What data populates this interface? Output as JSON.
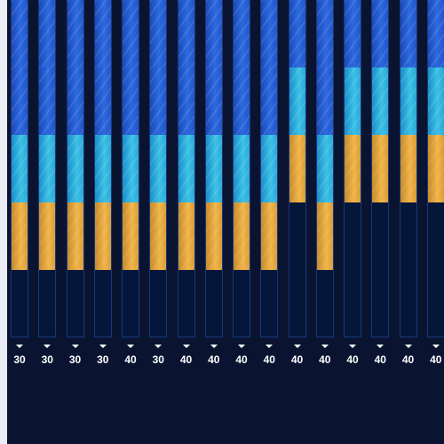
{
  "colors": {
    "background": "#0a1431",
    "track": "#04173a",
    "segment_blue": "#2d6ae0",
    "segment_cyan": "#3cc2e6",
    "segment_gold": "#f0b64a",
    "label": "#ffffff"
  },
  "columns": [
    {
      "value": "30",
      "level": 4
    },
    {
      "value": "30",
      "level": 4
    },
    {
      "value": "30",
      "level": 4
    },
    {
      "value": "30",
      "level": 4
    },
    {
      "value": "40",
      "level": 4
    },
    {
      "value": "30",
      "level": 4
    },
    {
      "value": "40",
      "level": 4
    },
    {
      "value": "40",
      "level": 4
    },
    {
      "value": "40",
      "level": 4
    },
    {
      "value": "40",
      "level": 4
    },
    {
      "value": "40",
      "level": 3
    },
    {
      "value": "40",
      "level": 4
    },
    {
      "value": "40",
      "level": 3
    },
    {
      "value": "40",
      "level": 3
    },
    {
      "value": "40",
      "level": 3
    },
    {
      "value": "40",
      "level": 3
    }
  ]
}
